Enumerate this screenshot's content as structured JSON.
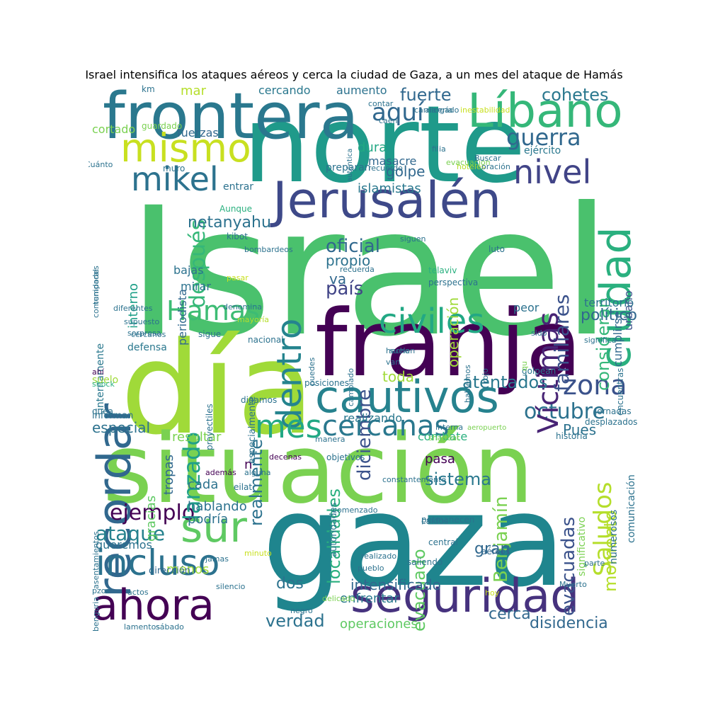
{
  "title": "Israel intensifica los ataques aéreos y cerca la ciudad de Gaza, a un mes del ataque de Hamás",
  "words": [
    {
      "text": "Israel",
      "color": "#4ac16d"
    },
    {
      "text": "norte",
      "color": "#1f9a8a"
    },
    {
      "text": "día",
      "color": "#a0da39"
    },
    {
      "text": "situación",
      "color": "#7ad151"
    },
    {
      "text": "gaza",
      "color": "#1f858e"
    },
    {
      "text": "franja",
      "color": "#440154"
    },
    {
      "text": "frontera",
      "color": "#2a788e"
    },
    {
      "text": "Líbano",
      "color": "#35b779"
    },
    {
      "text": "mismo",
      "color": "#c8e020"
    },
    {
      "text": "Jerusalén",
      "color": "#3e4989"
    },
    {
      "text": "recordar",
      "color": "#31688e"
    },
    {
      "text": "ciudad",
      "color": "#2ab07f"
    },
    {
      "text": "nivel",
      "color": "#414487"
    },
    {
      "text": "guerra",
      "color": "#31688e"
    },
    {
      "text": "mikel",
      "color": "#2c728e"
    },
    {
      "text": "cautivos",
      "color": "#26828e"
    },
    {
      "text": "civiles",
      "color": "#22a884"
    },
    {
      "text": "dentro",
      "color": "#25848e"
    },
    {
      "text": "Hamas",
      "color": "#3dbc74"
    },
    {
      "text": "incluso",
      "color": "#2c728e"
    },
    {
      "text": "ahora",
      "color": "#440154"
    },
    {
      "text": "seguridad",
      "color": "#46327e"
    },
    {
      "text": "sur",
      "color": "#5ec962"
    },
    {
      "text": "mes",
      "color": "#22a884"
    },
    {
      "text": "cercanas",
      "color": "#2a788e"
    },
    {
      "text": "zona",
      "color": "#3b528b"
    },
    {
      "text": "octubre",
      "color": "#2c728e"
    },
    {
      "text": "Víctimas",
      "color": "#482475"
    },
    {
      "text": "familiares",
      "color": "#3b528b"
    },
    {
      "text": "consideran",
      "color": "#35b779"
    },
    {
      "text": "cohetes",
      "color": "#2a788e"
    },
    {
      "text": "aquí",
      "color": "#31688e"
    },
    {
      "text": "fuerte",
      "color": "#31688e"
    },
    {
      "text": "Saludos",
      "color": "#b5de2b"
    },
    {
      "text": "momento",
      "color": "#b5de2b"
    },
    {
      "text": "ejemplo",
      "color": "#440154"
    },
    {
      "text": "ataque",
      "color": "#26828e"
    },
    {
      "text": "lanzado",
      "color": "#1fa088"
    },
    {
      "text": "después",
      "color": "#35b779"
    },
    {
      "text": "netanyahu",
      "color": "#2c728e"
    },
    {
      "text": "evacuadas",
      "color": "#3b528b"
    },
    {
      "text": "evacuado",
      "color": "#5ec962"
    },
    {
      "text": "localidades",
      "color": "#2ab07f"
    },
    {
      "text": "Benjamín",
      "color": "#7ad151"
    },
    {
      "text": "oficial",
      "color": "#31688e"
    },
    {
      "text": "país",
      "color": "#414487"
    },
    {
      "text": "político",
      "color": "#31688e"
    },
    {
      "text": "atentados",
      "color": "#2a788e"
    },
    {
      "text": "realmente",
      "color": "#2c728e"
    },
    {
      "text": "diciembre",
      "color": "#3b528b"
    },
    {
      "text": "operación",
      "color": "#a0da39"
    },
    {
      "text": "sistema",
      "color": "#2a788e"
    },
    {
      "text": "gran",
      "color": "#31688e"
    },
    {
      "text": "dos",
      "color": "#2c728e"
    },
    {
      "text": "verdad",
      "color": "#2c728e"
    },
    {
      "text": "cerca",
      "color": "#31688e"
    },
    {
      "text": "disidencia",
      "color": "#31688e"
    },
    {
      "text": "intensificado",
      "color": "#31688e"
    },
    {
      "text": "enfrentar",
      "color": "#2a788e"
    },
    {
      "text": "operaciones",
      "color": "#5ec962"
    },
    {
      "text": "especial",
      "color": "#2c728e"
    },
    {
      "text": "Pues",
      "color": "#2c728e"
    },
    {
      "text": "toda",
      "color": "#a0da39"
    },
    {
      "text": "golpe",
      "color": "#31688e"
    },
    {
      "text": "islamistas",
      "color": "#2a788e"
    },
    {
      "text": "dura",
      "color": "#22a884"
    },
    {
      "text": "masacre",
      "color": "#31688e"
    },
    {
      "text": "mar",
      "color": "#b5de2b"
    },
    {
      "text": "fuerzas",
      "color": "#31688e"
    },
    {
      "text": "ejército",
      "color": "#2a788e"
    },
    {
      "text": "interno",
      "color": "#1fa088"
    },
    {
      "text": "cumplirse",
      "color": "#31688e"
    },
    {
      "text": "urbano",
      "color": "#3b528b"
    },
    {
      "text": "territorio",
      "color": "#2c728e"
    },
    {
      "text": "peor",
      "color": "#2c728e"
    },
    {
      "text": "va",
      "color": "#31688e"
    },
    {
      "text": "propio",
      "color": "#2c728e"
    },
    {
      "text": "pasa",
      "color": "#440154"
    },
    {
      "text": "cada",
      "color": "#2c728e"
    },
    {
      "text": "podría",
      "color": "#2c728e"
    },
    {
      "text": "hablando",
      "color": "#2c728e"
    },
    {
      "text": "menos",
      "color": "#a0da39"
    },
    {
      "text": "queremos",
      "color": "#2c728e"
    },
    {
      "text": "gracias",
      "color": "#5ec962"
    },
    {
      "text": "tropas",
      "color": "#31688e"
    },
    {
      "text": "resultar",
      "color": "#7ad151"
    },
    {
      "text": "combate",
      "color": "#2ab07f"
    },
    {
      "text": "realizando",
      "color": "#2a788e"
    },
    {
      "text": "mirar",
      "color": "#2c728e"
    },
    {
      "text": "bajas",
      "color": "#2c728e"
    },
    {
      "text": "periodista",
      "color": "#31688e"
    },
    {
      "text": "internamente",
      "color": "#2a788e"
    },
    {
      "text": "defensa",
      "color": "#2a788e"
    },
    {
      "text": "suelo",
      "color": "#a0da39"
    },
    {
      "text": "preparan",
      "color": "#2c728e"
    },
    {
      "text": "entrar",
      "color": "#2c728e"
    },
    {
      "text": "cercando",
      "color": "#2a788e"
    },
    {
      "text": "aumento",
      "color": "#2c728e"
    },
    {
      "text": "cortado",
      "color": "#7ad151"
    },
    {
      "text": "comunicación",
      "color": "#2c728e"
    },
    {
      "text": "numerosos",
      "color": "#2c728e"
    },
    {
      "text": "n",
      "color": "#440154"
    },
    {
      "text": "dirección",
      "color": "#31688e"
    },
    {
      "text": "informan",
      "color": "#2c728e"
    },
    {
      "text": "nacional",
      "color": "#2c728e"
    },
    {
      "text": "proyectiles",
      "color": "#2c728e"
    },
    {
      "text": "especialmente",
      "color": "#2c728e"
    },
    {
      "text": "posiciones",
      "color": "#2c728e"
    },
    {
      "text": "digamos",
      "color": "#2c728e"
    },
    {
      "text": "objetivos",
      "color": "#2c728e"
    },
    {
      "text": "autoridades",
      "color": "#2a788e"
    },
    {
      "text": "constantemente",
      "color": "#2c728e"
    },
    {
      "text": "comenzado",
      "color": "#2c728e"
    },
    {
      "text": "permanecen",
      "color": "#2c728e"
    },
    {
      "text": "aéreos",
      "color": "#31688e"
    },
    {
      "text": "central",
      "color": "#2c728e"
    },
    {
      "text": "saliendo",
      "color": "#2c728e"
    },
    {
      "text": "significativo",
      "color": "#7ad151"
    },
    {
      "text": "historia",
      "color": "#2c728e"
    },
    {
      "text": "desplazados",
      "color": "#2c728e"
    },
    {
      "text": "jornadas",
      "color": "#2c728e"
    },
    {
      "text": "encuentras",
      "color": "#2c728e"
    },
    {
      "text": "golpean",
      "color": "#2a788e"
    },
    {
      "text": "asentamientos",
      "color": "#2c728e"
    },
    {
      "text": "comunidades",
      "color": "#2c728e"
    },
    {
      "text": "temporal",
      "color": "#2c728e"
    },
    {
      "text": "Cuánto",
      "color": "#2c728e"
    },
    {
      "text": "km",
      "color": "#2c728e"
    },
    {
      "text": "guardado",
      "color": "#7ad151"
    },
    {
      "text": "muro",
      "color": "#2c728e"
    },
    {
      "text": "Aunque",
      "color": "#2ab07f"
    },
    {
      "text": "kibot",
      "color": "#2c728e"
    },
    {
      "text": "bombardeos",
      "color": "#2c728e"
    },
    {
      "text": "pasar",
      "color": "#c8e020"
    },
    {
      "text": "siguen",
      "color": "#2c728e"
    },
    {
      "text": "luto",
      "color": "#2c728e"
    },
    {
      "text": "telaviv",
      "color": "#2ab07f"
    },
    {
      "text": "perspectiva",
      "color": "#2c728e"
    },
    {
      "text": "recuerda",
      "color": "#2c728e"
    },
    {
      "text": "denomina",
      "color": "#2c728e"
    },
    {
      "text": "mayoría",
      "color": "#b5de2b"
    },
    {
      "text": "diferentes",
      "color": "#2c728e"
    },
    {
      "text": "supuesto",
      "color": "#2c728e"
    },
    {
      "text": "sorpresa",
      "color": "#2c728e"
    },
    {
      "text": "cercanos",
      "color": "#2c728e"
    },
    {
      "text": "sigue",
      "color": "#2c728e"
    },
    {
      "text": "ahí",
      "color": "#440154"
    },
    {
      "text": "shock",
      "color": "#2ab07f"
    },
    {
      "text": "quea",
      "color": "#2c728e"
    },
    {
      "text": "además",
      "color": "#440154"
    },
    {
      "text": "alguna",
      "color": "#2c728e"
    },
    {
      "text": "eilat",
      "color": "#2c728e"
    },
    {
      "text": "decenas",
      "color": "#440154"
    },
    {
      "text": "manera",
      "color": "#2c728e"
    },
    {
      "text": "shabbat",
      "color": "#7ad151"
    },
    {
      "text": "interna",
      "color": "#2c728e"
    },
    {
      "text": "aeropuerto",
      "color": "#7ad151"
    },
    {
      "text": "suelen",
      "color": "#2c728e"
    },
    {
      "text": "hecho",
      "color": "#2c728e"
    },
    {
      "text": "van",
      "color": "#2c728e"
    },
    {
      "text": "puedes",
      "color": "#2c728e"
    },
    {
      "text": "cambiado",
      "color": "#2c728e"
    },
    {
      "text": "hablemos",
      "color": "#2c728e"
    },
    {
      "text": "rojo",
      "color": "#2c728e"
    },
    {
      "text": "qu",
      "color": "#7ad151"
    },
    {
      "text": "sido",
      "color": "#2c728e"
    },
    {
      "text": "significa",
      "color": "#2c728e"
    },
    {
      "text": "caídos",
      "color": "#2c728e"
    },
    {
      "text": "realizado",
      "color": "#2c728e"
    },
    {
      "text": "pueblo",
      "color": "#2c728e"
    },
    {
      "text": "parte",
      "color": "#2c728e"
    },
    {
      "text": "Muerto",
      "color": "#2c728e"
    },
    {
      "text": "hoy",
      "color": "#c8e020"
    },
    {
      "text": "delicado",
      "color": "#7ad151"
    },
    {
      "text": "negro",
      "color": "#2c728e"
    },
    {
      "text": "pzos",
      "color": "#2c728e"
    },
    {
      "text": "actos",
      "color": "#2c728e"
    },
    {
      "text": "silencio",
      "color": "#2c728e"
    },
    {
      "text": "jamas",
      "color": "#2c728e"
    },
    {
      "text": "minuto",
      "color": "#c8e020"
    },
    {
      "text": "benguria",
      "color": "#2c728e"
    },
    {
      "text": "lamentos",
      "color": "#2c728e"
    },
    {
      "text": "sábado",
      "color": "#2c728e"
    },
    {
      "text": "contar",
      "color": "#2c728e"
    },
    {
      "text": "caen",
      "color": "#2c728e"
    },
    {
      "text": "carnicería",
      "color": "#2c728e"
    },
    {
      "text": "inestabilidad",
      "color": "#c8e020"
    },
    {
      "text": "auténtica",
      "color": "#2c728e"
    },
    {
      "text": "alargado",
      "color": "#2c728e"
    },
    {
      "text": "recuerdo",
      "color": "#2c728e"
    },
    {
      "text": "filia",
      "color": "#2c728e"
    },
    {
      "text": "hoteles",
      "color": "#b5de2b"
    },
    {
      "text": "oración",
      "color": "#2c728e"
    },
    {
      "text": "evacuación",
      "color": "#7ad151"
    },
    {
      "text": "Buscar",
      "color": "#2c728e"
    },
    {
      "text": "black",
      "color": "#2c728e"
    },
    {
      "text": "gas",
      "color": "#c8e020"
    },
    {
      "text": "duda",
      "color": "#2c728e"
    },
    {
      "text": "favor",
      "color": "#2c728e"
    }
  ]
}
